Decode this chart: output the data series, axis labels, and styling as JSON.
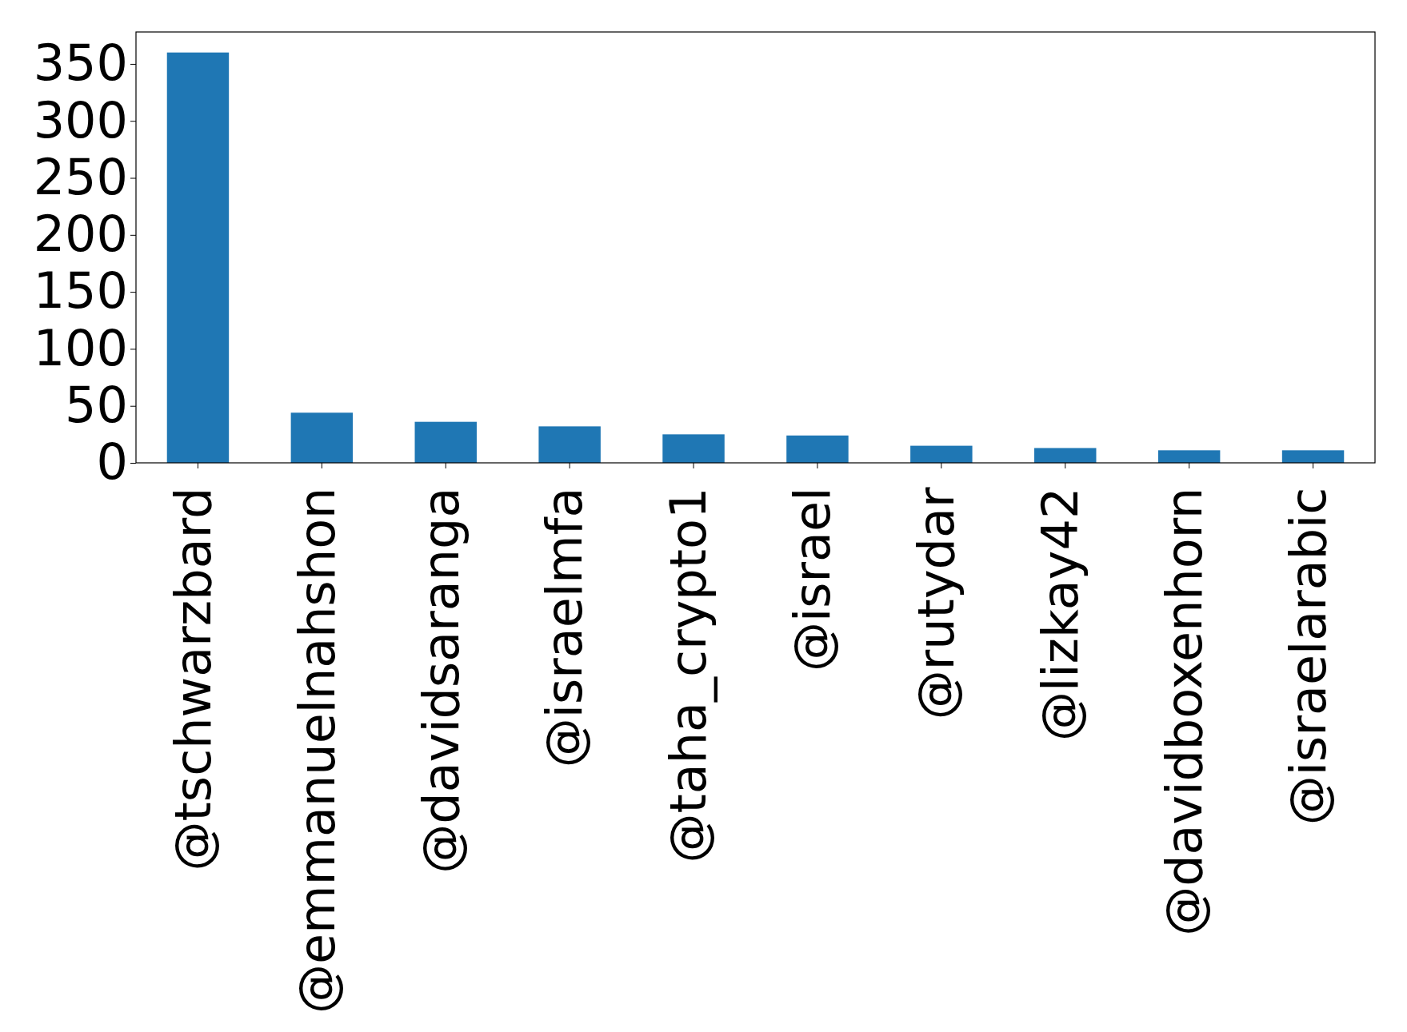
{
  "chart_data": {
    "type": "bar",
    "categories": [
      "@tschwarzbard",
      "@emmanuelnahshon",
      "@davidsaranga",
      "@israelmfa",
      "@taha_crypto1",
      "@israel",
      "@rutydar",
      "@lizkay42",
      "@davidboxenhorn",
      "@israelarabic"
    ],
    "values": [
      360,
      44,
      36,
      32,
      25,
      24,
      15,
      13,
      11,
      11
    ],
    "color": "#1f77b4",
    "ylim": [
      0,
      378
    ],
    "yticks": [
      0,
      50,
      100,
      150,
      200,
      250,
      300,
      350
    ],
    "grid": false
  }
}
